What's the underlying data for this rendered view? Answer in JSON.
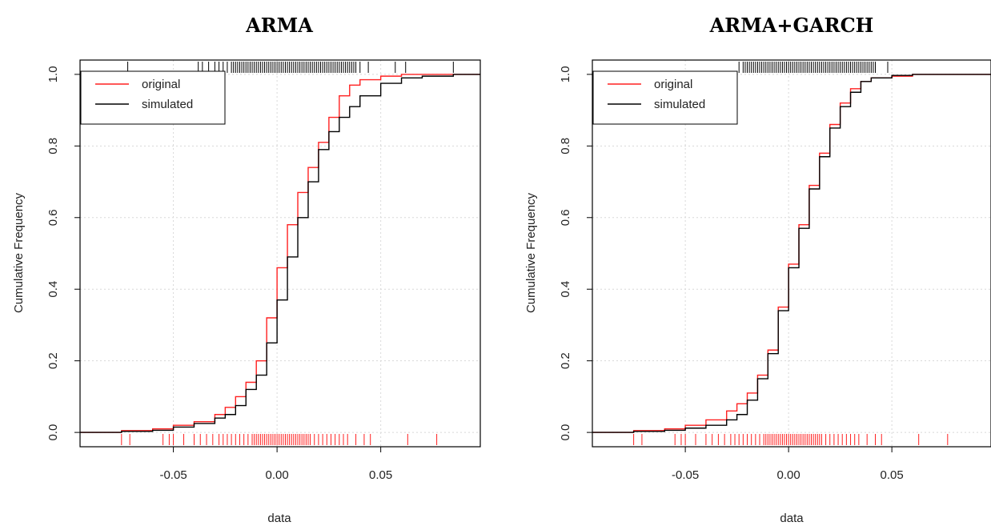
{
  "colors": {
    "original": "#ff2020",
    "simulated": "#000000",
    "grid": "#d8d8d8",
    "frame": "#000000"
  },
  "chart_data": [
    {
      "type": "line",
      "title": "ARMA",
      "xlabel": "data",
      "ylabel": "Cumulative Frequency",
      "xlim": [
        -0.095,
        0.098
      ],
      "ylim": [
        -0.04,
        1.04
      ],
      "xticks": [
        -0.05,
        0.0,
        0.05
      ],
      "xtick_labels": [
        "-0.05",
        "0.00",
        "0.05"
      ],
      "yticks": [
        0.0,
        0.2,
        0.4,
        0.6,
        0.8,
        1.0
      ],
      "ytick_labels": [
        "0.0",
        "0.2",
        "0.4",
        "0.6",
        "0.8",
        "1.0"
      ],
      "grid": true,
      "legend_position": "top-left",
      "series": [
        {
          "name": "original",
          "color": "#ff2020",
          "x": [
            -0.095,
            -0.075,
            -0.06,
            -0.05,
            -0.04,
            -0.03,
            -0.025,
            -0.02,
            -0.015,
            -0.01,
            -0.005,
            0.0,
            0.005,
            0.01,
            0.015,
            0.02,
            0.025,
            0.03,
            0.035,
            0.04,
            0.05,
            0.06,
            0.07,
            0.098
          ],
          "y": [
            0.0,
            0.005,
            0.01,
            0.02,
            0.03,
            0.05,
            0.07,
            0.1,
            0.14,
            0.2,
            0.32,
            0.46,
            0.58,
            0.67,
            0.74,
            0.81,
            0.88,
            0.94,
            0.97,
            0.985,
            0.995,
            1.0,
            1.0,
            1.0
          ],
          "rug": [
            -0.075,
            -0.071,
            -0.055,
            -0.052,
            -0.05,
            -0.045,
            -0.04,
            -0.037,
            -0.034,
            -0.031,
            -0.028,
            -0.026,
            -0.024,
            -0.022,
            -0.02,
            -0.018,
            -0.016,
            -0.014,
            -0.012,
            -0.011,
            -0.01,
            -0.009,
            -0.008,
            -0.007,
            -0.006,
            -0.005,
            -0.004,
            -0.003,
            -0.002,
            -0.001,
            0.0,
            0.001,
            0.002,
            0.003,
            0.004,
            0.005,
            0.006,
            0.007,
            0.008,
            0.009,
            0.01,
            0.011,
            0.012,
            0.013,
            0.014,
            0.015,
            0.016,
            0.018,
            0.02,
            0.022,
            0.024,
            0.026,
            0.028,
            0.03,
            0.032,
            0.034,
            0.038,
            0.042,
            0.045,
            0.063,
            0.077
          ]
        },
        {
          "name": "simulated",
          "color": "#000000",
          "x": [
            -0.095,
            -0.075,
            -0.06,
            -0.05,
            -0.04,
            -0.03,
            -0.025,
            -0.02,
            -0.015,
            -0.01,
            -0.005,
            0.0,
            0.005,
            0.01,
            0.015,
            0.02,
            0.025,
            0.03,
            0.035,
            0.04,
            0.05,
            0.06,
            0.07,
            0.085,
            0.098
          ],
          "y": [
            0.0,
            0.003,
            0.006,
            0.015,
            0.025,
            0.04,
            0.05,
            0.075,
            0.12,
            0.16,
            0.25,
            0.37,
            0.49,
            0.6,
            0.7,
            0.79,
            0.84,
            0.88,
            0.91,
            0.94,
            0.975,
            0.99,
            0.995,
            1.0,
            1.0
          ],
          "rug": [
            -0.072,
            -0.038,
            -0.036,
            -0.033,
            -0.03,
            -0.028,
            -0.026,
            -0.024,
            -0.022,
            -0.021,
            -0.02,
            -0.019,
            -0.018,
            -0.017,
            -0.016,
            -0.015,
            -0.014,
            -0.013,
            -0.012,
            -0.011,
            -0.01,
            -0.009,
            -0.008,
            -0.007,
            -0.006,
            -0.005,
            -0.004,
            -0.003,
            -0.002,
            -0.001,
            0.0,
            0.001,
            0.002,
            0.003,
            0.004,
            0.005,
            0.006,
            0.007,
            0.008,
            0.009,
            0.01,
            0.011,
            0.012,
            0.013,
            0.014,
            0.015,
            0.016,
            0.017,
            0.018,
            0.019,
            0.02,
            0.021,
            0.022,
            0.023,
            0.024,
            0.025,
            0.026,
            0.027,
            0.028,
            0.029,
            0.03,
            0.031,
            0.032,
            0.033,
            0.034,
            0.035,
            0.036,
            0.037,
            0.038,
            0.04,
            0.044,
            0.057,
            0.062,
            0.085
          ]
        }
      ]
    },
    {
      "type": "line",
      "title": "ARMA+GARCH",
      "xlabel": "data",
      "ylabel": "Cumulative Frequency",
      "xlim": [
        -0.095,
        0.098
      ],
      "ylim": [
        -0.04,
        1.04
      ],
      "xticks": [
        -0.05,
        0.0,
        0.05
      ],
      "xtick_labels": [
        "-0.05",
        "0.00",
        "0.05"
      ],
      "yticks": [
        0.0,
        0.2,
        0.4,
        0.6,
        0.8,
        1.0
      ],
      "ytick_labels": [
        "0.0",
        "0.2",
        "0.4",
        "0.6",
        "0.8",
        "1.0"
      ],
      "grid": true,
      "legend_position": "top-left",
      "series": [
        {
          "name": "original",
          "color": "#ff2020",
          "x": [
            -0.095,
            -0.075,
            -0.06,
            -0.05,
            -0.04,
            -0.03,
            -0.025,
            -0.02,
            -0.015,
            -0.01,
            -0.005,
            0.0,
            0.005,
            0.01,
            0.015,
            0.02,
            0.025,
            0.03,
            0.035,
            0.04,
            0.05,
            0.06,
            0.07,
            0.098
          ],
          "y": [
            0.0,
            0.005,
            0.01,
            0.02,
            0.035,
            0.06,
            0.08,
            0.11,
            0.16,
            0.23,
            0.35,
            0.47,
            0.58,
            0.69,
            0.78,
            0.86,
            0.92,
            0.96,
            0.98,
            0.99,
            0.995,
            1.0,
            1.0,
            1.0
          ],
          "rug": [
            -0.075,
            -0.071,
            -0.055,
            -0.052,
            -0.05,
            -0.045,
            -0.04,
            -0.037,
            -0.034,
            -0.031,
            -0.028,
            -0.026,
            -0.024,
            -0.022,
            -0.02,
            -0.018,
            -0.016,
            -0.014,
            -0.012,
            -0.011,
            -0.01,
            -0.009,
            -0.008,
            -0.007,
            -0.006,
            -0.005,
            -0.004,
            -0.003,
            -0.002,
            -0.001,
            0.0,
            0.001,
            0.002,
            0.003,
            0.004,
            0.005,
            0.006,
            0.007,
            0.008,
            0.009,
            0.01,
            0.011,
            0.012,
            0.013,
            0.014,
            0.015,
            0.016,
            0.018,
            0.02,
            0.022,
            0.024,
            0.026,
            0.028,
            0.03,
            0.032,
            0.034,
            0.038,
            0.042,
            0.045,
            0.063,
            0.077
          ]
        },
        {
          "name": "simulated",
          "color": "#000000",
          "x": [
            -0.095,
            -0.075,
            -0.06,
            -0.05,
            -0.04,
            -0.03,
            -0.025,
            -0.02,
            -0.015,
            -0.01,
            -0.005,
            0.0,
            0.005,
            0.01,
            0.015,
            0.02,
            0.025,
            0.03,
            0.035,
            0.04,
            0.05,
            0.06,
            0.07,
            0.098
          ],
          "y": [
            0.0,
            0.003,
            0.006,
            0.012,
            0.02,
            0.035,
            0.05,
            0.09,
            0.15,
            0.22,
            0.34,
            0.46,
            0.57,
            0.68,
            0.77,
            0.85,
            0.91,
            0.95,
            0.98,
            0.99,
            0.997,
            1.0,
            1.0,
            1.0
          ],
          "rug": [
            -0.024,
            -0.022,
            -0.021,
            -0.02,
            -0.019,
            -0.018,
            -0.017,
            -0.016,
            -0.015,
            -0.014,
            -0.013,
            -0.012,
            -0.011,
            -0.01,
            -0.009,
            -0.008,
            -0.007,
            -0.006,
            -0.005,
            -0.004,
            -0.003,
            -0.002,
            -0.001,
            0.0,
            0.001,
            0.002,
            0.003,
            0.004,
            0.005,
            0.006,
            0.007,
            0.008,
            0.009,
            0.01,
            0.011,
            0.012,
            0.013,
            0.014,
            0.015,
            0.016,
            0.017,
            0.018,
            0.019,
            0.02,
            0.021,
            0.022,
            0.023,
            0.024,
            0.025,
            0.026,
            0.027,
            0.028,
            0.029,
            0.03,
            0.031,
            0.032,
            0.033,
            0.034,
            0.035,
            0.036,
            0.037,
            0.038,
            0.039,
            0.04,
            0.041,
            0.042,
            0.048
          ]
        }
      ]
    }
  ]
}
